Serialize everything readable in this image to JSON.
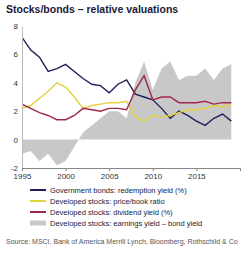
{
  "chart_data": {
    "type": "line",
    "title": "Stocks/bonds – relative valuations",
    "source": "Source: MSCI, Bank of America Merrill Lynch, Bloomberg, Rothschild & Co",
    "x": [
      1995,
      1996,
      1997,
      1998,
      1999,
      2000,
      2001,
      2002,
      2003,
      2004,
      2005,
      2006,
      2007,
      2008,
      2009,
      2010,
      2011,
      2012,
      2013,
      2014,
      2015,
      2016,
      2017,
      2018,
      2019
    ],
    "xlim": [
      1995,
      2020
    ],
    "xticks": [
      1995,
      2000,
      2005,
      2010,
      2015
    ],
    "ylim": [
      -2,
      8
    ],
    "yticks": [
      -2,
      0,
      2,
      4,
      6,
      8
    ],
    "grid": false,
    "series": [
      {
        "name": "Government bonds: redemption yield (%)",
        "color": "#1f1f5c",
        "type": "line",
        "values": [
          7.2,
          6.3,
          5.8,
          4.8,
          5.0,
          5.3,
          4.8,
          4.3,
          3.9,
          3.8,
          3.3,
          3.9,
          4.2,
          3.2,
          3.0,
          2.8,
          2.2,
          1.5,
          2.0,
          1.7,
          1.3,
          1.0,
          1.5,
          1.8,
          1.3
        ]
      },
      {
        "name": "Developed stocks: price/book ratio",
        "color": "#e3d23c",
        "type": "line",
        "values": [
          2.2,
          2.4,
          2.9,
          3.4,
          4.0,
          3.7,
          3.0,
          2.2,
          2.4,
          2.5,
          2.6,
          2.6,
          2.7,
          1.6,
          1.3,
          1.7,
          1.6,
          1.7,
          1.9,
          2.1,
          2.1,
          2.2,
          2.4,
          2.3,
          2.5
        ]
      },
      {
        "name": "Developed stocks: dividend yield (%)",
        "color": "#a0294a",
        "type": "line",
        "values": [
          2.5,
          2.2,
          1.9,
          1.7,
          1.4,
          1.4,
          1.7,
          2.2,
          2.1,
          2.0,
          2.2,
          2.2,
          2.1,
          3.5,
          4.5,
          2.8,
          3.0,
          3.0,
          2.6,
          2.6,
          2.6,
          2.7,
          2.5,
          2.6,
          2.6
        ]
      },
      {
        "name": "Developed stocks: earnings yield – bond yield",
        "color": "#c8c8c8",
        "type": "area",
        "values": [
          -1.0,
          -0.8,
          -1.5,
          -1.0,
          -1.8,
          -1.5,
          -0.5,
          0.5,
          1.0,
          1.5,
          2.0,
          2.0,
          1.5,
          4.0,
          5.5,
          3.5,
          5.0,
          5.5,
          4.2,
          4.5,
          4.5,
          5.0,
          4.2,
          5.0,
          5.3
        ]
      }
    ]
  }
}
